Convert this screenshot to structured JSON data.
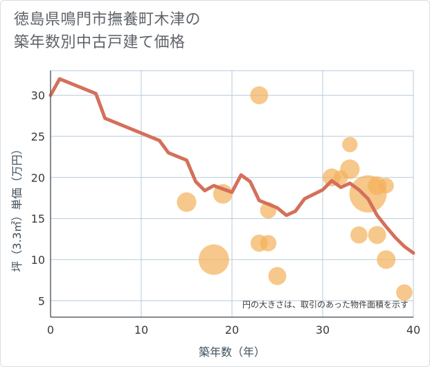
{
  "title_line1": "徳島県鳴門市撫養町木津の",
  "title_line2": "築年数別中古戸建て価格",
  "note": "円の大きさは、取引のあった物件面積を示す",
  "chart_data": {
    "type": "scatter",
    "xlabel": "築年数（年）",
    "ylabel": "坪（3.3㎡）単価（万円）",
    "xlim": [
      0,
      40
    ],
    "ylim": [
      3,
      33
    ],
    "xticks": [
      0,
      10,
      20,
      30,
      40
    ],
    "yticks": [
      5,
      10,
      15,
      20,
      25,
      30
    ],
    "grid": true,
    "colors": {
      "line": "#d4705a",
      "bubble": "#f3b05a",
      "grid": "#b7c9d9",
      "axis": "#5f6368"
    },
    "line_series": {
      "x": [
        0,
        1,
        5,
        6,
        12,
        13,
        15,
        16,
        17,
        18,
        20,
        21,
        22,
        23,
        25,
        26,
        27,
        28,
        30,
        31,
        32,
        33,
        34,
        35,
        36,
        37,
        38,
        39,
        40
      ],
      "y": [
        30,
        32,
        30.2,
        27.2,
        24.5,
        23.0,
        22.1,
        19.5,
        18.4,
        19.0,
        18.2,
        20.3,
        19.5,
        17.2,
        16.3,
        15.4,
        15.9,
        17.4,
        18.5,
        19.6,
        18.8,
        19.3,
        18.5,
        17.4,
        15.4,
        14.0,
        12.7,
        11.6,
        10.8
      ]
    },
    "bubbles": [
      {
        "x": 15,
        "y": 17,
        "size": 5
      },
      {
        "x": 18,
        "y": 10,
        "size": 16
      },
      {
        "x": 19,
        "y": 18,
        "size": 5
      },
      {
        "x": 23,
        "y": 30,
        "size": 4
      },
      {
        "x": 23,
        "y": 12,
        "size": 3.5
      },
      {
        "x": 24,
        "y": 12,
        "size": 3
      },
      {
        "x": 24,
        "y": 16,
        "size": 3
      },
      {
        "x": 25,
        "y": 8,
        "size": 4
      },
      {
        "x": 31,
        "y": 20,
        "size": 4
      },
      {
        "x": 32,
        "y": 20,
        "size": 2
      },
      {
        "x": 33,
        "y": 21,
        "size": 5
      },
      {
        "x": 33,
        "y": 24,
        "size": 2.5
      },
      {
        "x": 34,
        "y": 13,
        "size": 3.5
      },
      {
        "x": 35,
        "y": 18,
        "size": 26
      },
      {
        "x": 36,
        "y": 19,
        "size": 4.5
      },
      {
        "x": 36,
        "y": 13,
        "size": 4
      },
      {
        "x": 37,
        "y": 10,
        "size": 4.5
      },
      {
        "x": 37,
        "y": 19,
        "size": 2.5
      },
      {
        "x": 39,
        "y": 6,
        "size": 3
      }
    ]
  }
}
